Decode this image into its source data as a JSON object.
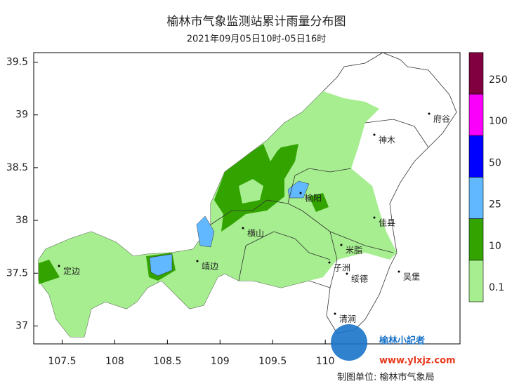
{
  "header": {
    "title": "榆林市气象监测站累计雨量分布图",
    "subtitle": "2021年09月05日10时-05日16时"
  },
  "map": {
    "xlim": [
      107.23,
      111.28
    ],
    "ylim": [
      36.83,
      39.59
    ],
    "xticks": [
      107.5,
      108,
      108.5,
      109,
      109.5,
      110
    ],
    "yticks": [
      37,
      37.5,
      38,
      38.5,
      39,
      39.5
    ],
    "places": [
      "定边",
      "靖边",
      "横山",
      "榆阳",
      "神木",
      "府谷",
      "佳县",
      "米脂",
      "子洲",
      "绥德",
      "吴堡",
      "清涧"
    ]
  },
  "legend": {
    "levels": [
      0.1,
      10,
      25,
      50,
      100,
      250
    ],
    "colors": [
      "#a6ee8f",
      "#33a300",
      "#61b8ff",
      "#0000fe",
      "#fa00fa",
      "#800040"
    ]
  },
  "footer": "制图单位: 榆林市气象局",
  "watermark": {
    "name": "榆林小記者",
    "url": "www.ylxjz.com"
  }
}
